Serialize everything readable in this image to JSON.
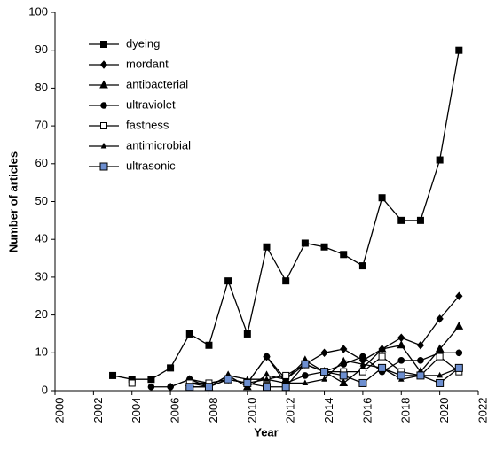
{
  "chart_data": {
    "type": "line",
    "x_label": "Year",
    "y_label": "Number of articles",
    "x": [
      2003,
      2004,
      2005,
      2006,
      2007,
      2008,
      2009,
      2010,
      2011,
      2012,
      2013,
      2014,
      2015,
      2016,
      2017,
      2018,
      2019,
      2020,
      2021
    ],
    "series": [
      {
        "name": "dyeing",
        "color": "#000000",
        "marker": "square",
        "values": [
          4,
          3,
          3,
          6,
          15,
          12,
          29,
          15,
          38,
          29,
          39,
          38,
          36,
          33,
          51,
          45,
          45,
          61,
          90
        ]
      },
      {
        "name": "mordant",
        "color": "#000000",
        "marker": "diamond",
        "values": [
          null,
          null,
          null,
          1,
          3,
          2,
          3,
          2,
          9,
          3,
          7,
          10,
          11,
          8,
          11,
          14,
          12,
          19,
          25
        ]
      },
      {
        "name": "antibacterial",
        "color": "#000000",
        "marker": "triangle",
        "values": [
          null,
          null,
          null,
          null,
          2,
          1,
          4,
          1,
          4,
          3,
          8,
          5,
          2,
          6,
          11,
          12,
          5,
          11,
          17
        ]
      },
      {
        "name": "ultraviolet",
        "color": "#000000",
        "marker": "circle",
        "values": [
          null,
          null,
          1,
          1,
          3,
          1,
          3,
          2,
          9,
          2,
          4,
          5,
          7,
          9,
          5,
          8,
          8,
          10,
          10
        ]
      },
      {
        "name": "fastness",
        "color": "#000000",
        "marker": "open-square",
        "values": [
          null,
          2,
          null,
          null,
          2,
          2,
          3,
          2,
          3,
          4,
          7,
          5,
          5,
          5,
          9,
          5,
          4,
          9,
          5
        ]
      },
      {
        "name": "antimicrobial",
        "color": "#000000",
        "marker": "small-triangle",
        "values": [
          null,
          null,
          null,
          null,
          1,
          1,
          4,
          3,
          3,
          2,
          2,
          3,
          8,
          7,
          6,
          3,
          4,
          4,
          6
        ]
      },
      {
        "name": "ultrasonic",
        "color": "#000000",
        "marker": "blue-square",
        "values": [
          null,
          null,
          null,
          null,
          1,
          1,
          3,
          2,
          1,
          1,
          7,
          5,
          4,
          2,
          6,
          4,
          4,
          2,
          6
        ]
      }
    ],
    "xlim": [
      2000,
      2022
    ],
    "xticks": [
      2000,
      2002,
      2004,
      2006,
      2008,
      2010,
      2012,
      2014,
      2016,
      2018,
      2020,
      2022
    ],
    "ylim": [
      0,
      100
    ],
    "yticks": [
      0,
      10,
      20,
      30,
      40,
      50,
      60,
      70,
      80,
      90,
      100
    ],
    "grid": false,
    "legend": "upper-left"
  }
}
